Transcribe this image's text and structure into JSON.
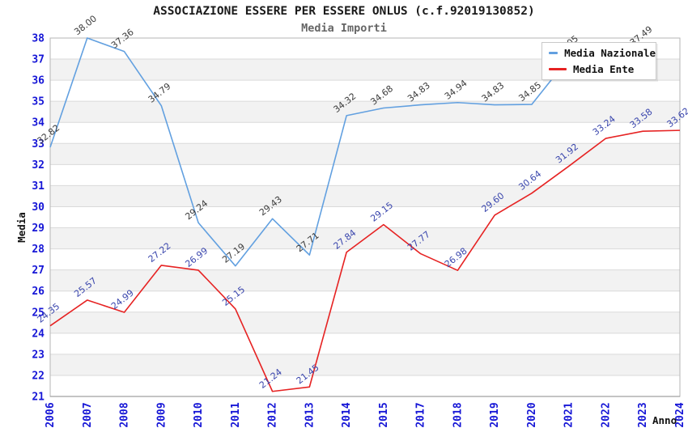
{
  "title": "ASSOCIAZIONE ESSERE PER ESSERE ONLUS (c.f.92019130852)",
  "subtitle": "Media Importi",
  "legend": {
    "items": [
      {
        "label": "Media Nazionale",
        "color": "#62a0e0"
      },
      {
        "label": "Media Ente",
        "color": "#e62222"
      }
    ]
  },
  "chart_data": {
    "type": "line",
    "x": [
      "2006",
      "2007",
      "2008",
      "2009",
      "2010",
      "2011",
      "2012",
      "2013",
      "2014",
      "2015",
      "2017",
      "2018",
      "2019",
      "2020",
      "2021",
      "2022",
      "2023",
      "2024"
    ],
    "series": [
      {
        "name": "Media Nazionale",
        "color": "#62a0e0",
        "label_color": "#3c3c3c",
        "values": [
          32.82,
          38.0,
          37.36,
          34.79,
          29.24,
          27.19,
          29.43,
          27.71,
          34.32,
          34.68,
          34.83,
          34.94,
          34.83,
          34.85,
          37.05,
          null,
          37.49,
          null
        ]
      },
      {
        "name": "Media Ente",
        "color": "#e62222",
        "label_color": "#3a46ad",
        "values": [
          24.35,
          25.57,
          24.99,
          27.22,
          26.99,
          25.15,
          21.24,
          21.45,
          27.84,
          29.15,
          27.77,
          26.98,
          29.6,
          30.64,
          31.92,
          33.24,
          33.58,
          33.62
        ]
      }
    ],
    "title": "ASSOCIAZIONE ESSERE PER ESSERE ONLUS (c.f.92019130852)",
    "subtitle": "Media Importi",
    "xlabel": "Anno",
    "ylabel": "Media",
    "ylim": [
      21,
      38
    ],
    "y_tick_step": 1,
    "grid": true,
    "band_fill": "#f2f2f2",
    "grid_color": "#dadada",
    "border_color": "#b5b5b5",
    "tick_label_color": "#1515d6",
    "axis_title_color": "#111111",
    "legend_position": "top-right",
    "value_label_rotation": -38,
    "x_tick_rotation": -90
  }
}
